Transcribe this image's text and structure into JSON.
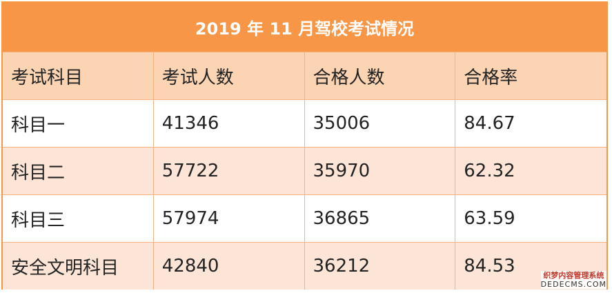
{
  "table": {
    "title": "2019 年 11 月驾校考试情况",
    "header": [
      "考试科目",
      "考试人数",
      "合格人数",
      "合格率"
    ],
    "rows": [
      [
        "科目一",
        41346,
        35006,
        84.67
      ],
      [
        "科目二",
        57722,
        35970,
        62.32
      ],
      [
        "科目三",
        57974,
        36865,
        63.59
      ],
      [
        "安全文明科目",
        42840,
        36212,
        84.53
      ]
    ]
  },
  "watermark": {
    "line1": "织梦内容管理系统",
    "line2": "DEDECMS.COM"
  }
}
